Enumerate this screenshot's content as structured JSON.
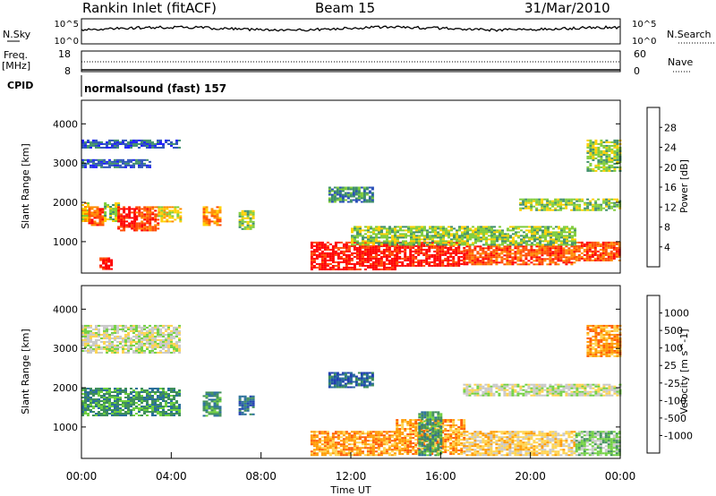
{
  "header": {
    "station": "Rankin Inlet (fitACF)",
    "beam": "Beam 15",
    "date": "31/Mar/2010"
  },
  "top_panels": {
    "nsky_label": "N.Sky",
    "nsearch_label": "N.Search",
    "nsky_ticks": [
      "10^5",
      "10^0"
    ],
    "nsearch_ticks": [
      "10^5",
      "10^0"
    ],
    "freq_label": "Freq.",
    "freq_unit": "[MHz]",
    "freq_ticks": [
      "18",
      "8"
    ],
    "nave_label": "Nave",
    "nave_ticks": [
      "60",
      "0"
    ],
    "cpid_label": "CPID",
    "cpid_value": "normalsound (fast) 157"
  },
  "chart_data": [
    {
      "type": "heatmap",
      "name": "power",
      "ylabel": "Slant Range [km]",
      "yticks": [
        1000,
        2000,
        3000,
        4000
      ],
      "ylim": [
        200,
        4600
      ],
      "xlim": [
        0,
        24
      ],
      "colorbar_label": "Power [dB]",
      "colorbar_ticks": [
        "4",
        "8",
        "12",
        "16",
        "20",
        "24",
        "28"
      ],
      "colorbar_colors": [
        "#1a1aff",
        "#2a50b8",
        "#3f8f6a",
        "#7fcc3a",
        "#ffd000",
        "#ff8a00",
        "#ff4a00",
        "#ff0000"
      ],
      "patches": [
        {
          "x": [
            0.0,
            0.3
          ],
          "y": [
            1500,
            2000
          ],
          "level": 4
        },
        {
          "x": [
            0.3,
            1.0
          ],
          "y": [
            1400,
            1900
          ],
          "level": 6
        },
        {
          "x": [
            1.0,
            1.6
          ],
          "y": [
            1500,
            2000
          ],
          "level": 3
        },
        {
          "x": [
            1.6,
            2.4
          ],
          "y": [
            1300,
            1900
          ],
          "level": 7
        },
        {
          "x": [
            2.4,
            3.4
          ],
          "y": [
            1300,
            1900
          ],
          "level": 6
        },
        {
          "x": [
            3.4,
            4.4
          ],
          "y": [
            1500,
            1900
          ],
          "level": 4
        },
        {
          "x": [
            5.4,
            6.2
          ],
          "y": [
            1400,
            1900
          ],
          "level": 5
        },
        {
          "x": [
            7.0,
            7.6
          ],
          "y": [
            1300,
            1800
          ],
          "level": 3
        },
        {
          "x": [
            0.8,
            1.3
          ],
          "y": [
            300,
            600
          ],
          "level": 7
        },
        {
          "x": [
            0.0,
            4.4
          ],
          "y": [
            3400,
            3600
          ],
          "level": 1
        },
        {
          "x": [
            0.0,
            3.0
          ],
          "y": [
            2900,
            3100
          ],
          "level": 1
        },
        {
          "x": [
            10.2,
            14.0
          ],
          "y": [
            300,
            1000
          ],
          "level": 7
        },
        {
          "x": [
            14.0,
            17.0
          ],
          "y": [
            400,
            1000
          ],
          "level": 7
        },
        {
          "x": [
            17.0,
            22.0
          ],
          "y": [
            400,
            900
          ],
          "level": 6
        },
        {
          "x": [
            22.0,
            24.0
          ],
          "y": [
            500,
            1000
          ],
          "level": 6
        },
        {
          "x": [
            12.0,
            22.0
          ],
          "y": [
            900,
            1400
          ],
          "level": 3
        },
        {
          "x": [
            11.0,
            13.0
          ],
          "y": [
            2000,
            2400
          ],
          "level": 2
        },
        {
          "x": [
            19.5,
            24.0
          ],
          "y": [
            1800,
            2100
          ],
          "level": 3
        },
        {
          "x": [
            22.5,
            24.0
          ],
          "y": [
            2800,
            3600
          ],
          "level": 3
        }
      ]
    },
    {
      "type": "heatmap",
      "name": "velocity",
      "ylabel": "Slant Range [km]",
      "yticks": [
        1000,
        2000,
        3000,
        4000
      ],
      "ylim": [
        200,
        4600
      ],
      "xlim": [
        0,
        24
      ],
      "xticks": [
        "00:00",
        "04:00",
        "08:00",
        "12:00",
        "16:00",
        "20:00",
        "00:00"
      ],
      "xlabel": "Time UT",
      "colorbar_label": "Velocity [m s^-1]",
      "colorbar_ticks": [
        "1000",
        "500",
        "100",
        "25",
        "-25",
        "-100",
        "-500",
        "-1000"
      ],
      "colorbar_colors": [
        "#2040b0",
        "#2a6f9a",
        "#3f8f5a",
        "#6fd040",
        "#c8c8c8",
        "#ffd34d",
        "#ff9a00",
        "#ff5a00",
        "#ff0000"
      ],
      "patches": [
        {
          "x": [
            0.0,
            4.4
          ],
          "y": [
            1300,
            2000
          ],
          "level": 2
        },
        {
          "x": [
            5.4,
            6.2
          ],
          "y": [
            1300,
            1900
          ],
          "level": 2
        },
        {
          "x": [
            7.0,
            7.6
          ],
          "y": [
            1300,
            1800
          ],
          "level": 1
        },
        {
          "x": [
            0.0,
            4.4
          ],
          "y": [
            2900,
            3600
          ],
          "level": 4
        },
        {
          "x": [
            10.2,
            14.0
          ],
          "y": [
            300,
            900
          ],
          "level": 6
        },
        {
          "x": [
            14.0,
            17.0
          ],
          "y": [
            300,
            1200
          ],
          "level": 6
        },
        {
          "x": [
            17.0,
            22.0
          ],
          "y": [
            300,
            900
          ],
          "level": 5
        },
        {
          "x": [
            15.0,
            16.0
          ],
          "y": [
            300,
            1400
          ],
          "level": 2
        },
        {
          "x": [
            22.0,
            24.0
          ],
          "y": [
            300,
            900
          ],
          "level": 3
        },
        {
          "x": [
            11.0,
            13.0
          ],
          "y": [
            2000,
            2400
          ],
          "level": 1
        },
        {
          "x": [
            17.0,
            24.0
          ],
          "y": [
            1800,
            2100
          ],
          "level": 4
        },
        {
          "x": [
            22.5,
            24.0
          ],
          "y": [
            2800,
            3600
          ],
          "level": 6
        }
      ]
    }
  ]
}
